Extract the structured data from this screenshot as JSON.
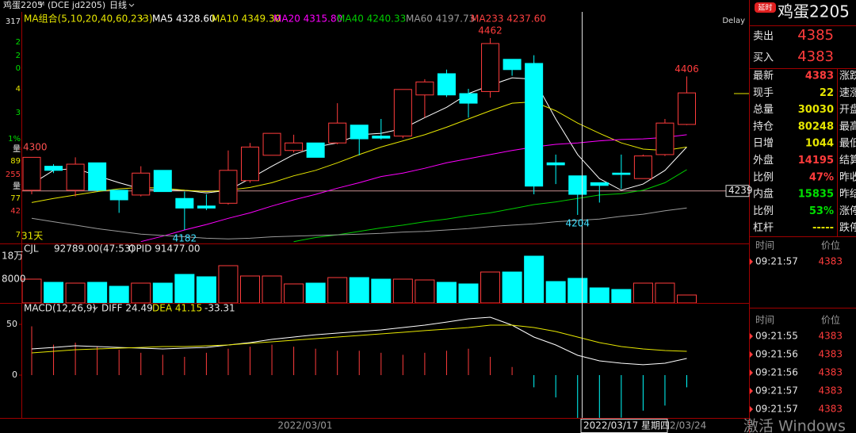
{
  "header": {
    "name": "鸡蛋2205",
    "superscript": "M",
    "code": "(DCE jd2205)",
    "period": "日线",
    "delay": "Delay"
  },
  "left_strip": [
    {
      "text": "317",
      "color": "#e6e6e6"
    },
    {
      "text": "2",
      "color": "#00e000"
    },
    {
      "text": "2",
      "color": "#00e000"
    },
    {
      "text": "0",
      "color": "#00e000"
    },
    {
      "text": "4",
      "color": "#e6e600"
    },
    {
      "text": "3",
      "color": "#00e000"
    },
    {
      "text": "1%",
      "color": "#00e000"
    },
    {
      "text": "量",
      "color": "#e6e6e6"
    },
    {
      "text": "89",
      "color": "#e6e600"
    },
    {
      "text": "255",
      "color": "#ff3c3c"
    },
    {
      "text": "量",
      "color": "#e6e6e6"
    },
    {
      "text": "77",
      "color": "#e6e600"
    },
    {
      "text": "42",
      "color": "#ff3c3c"
    },
    {
      "text": "7",
      "color": "#e6e600"
    }
  ],
  "ma_legend": {
    "title": "MA组合(5,10,20,40,60,233)",
    "items": [
      {
        "label": "MA5 4328.60",
        "color": "#ffffff",
        "values": [
          4249,
          4269,
          4272,
          4261,
          4251,
          4242,
          4240,
          4240,
          4236,
          4240,
          4257,
          4275,
          4292,
          4303,
          4309,
          4321,
          4323,
          4330,
          4346,
          4361,
          4381,
          4393,
          4404,
          4402,
          4344,
          4292,
          4257,
          4240,
          4249,
          4269,
          4303
        ]
      },
      {
        "label": "MA10 4349.30",
        "color": "#e6e600",
        "values": [
          4222,
          4228,
          4233,
          4238,
          4242,
          4244,
          4243,
          4240,
          4238,
          4240,
          4244,
          4251,
          4261,
          4269,
          4280,
          4292,
          4303,
          4312,
          4321,
          4332,
          4344,
          4356,
          4367,
          4369,
          4356,
          4338,
          4323,
          4309,
          4300,
          4298,
          4303
        ]
      },
      {
        "label": "MA20 4315.80",
        "color": "#ff00ff",
        "values": [
          null,
          null,
          null,
          null,
          null,
          4165,
          4173,
          4182,
          4190,
          4199,
          4207,
          4217,
          4226,
          4234,
          4243,
          4251,
          4260,
          4265,
          4272,
          4280,
          4286,
          4292,
          4298,
          4303,
          4307,
          4309,
          4312,
          4314,
          4315,
          4317,
          4321
        ]
      },
      {
        "label": "MA40 4240.33",
        "color": "#00cc00",
        "values": [
          null,
          null,
          null,
          null,
          null,
          null,
          null,
          null,
          null,
          null,
          null,
          null,
          4165,
          4171,
          4175,
          4180,
          4185,
          4189,
          4194,
          4198,
          4203,
          4207,
          4213,
          4219,
          4223,
          4228,
          4233,
          4235,
          4240,
          4251,
          4270
        ]
      },
      {
        "label": "MA60 4197.73",
        "color": "#9a9a9a",
        "values": [
          4199,
          4194,
          4189,
          4184,
          4180,
          4176,
          4174,
          4172,
          4170,
          4169,
          4170,
          4172,
          4173,
          4174,
          4175,
          4176,
          4177,
          4179,
          4180,
          4182,
          4184,
          4187,
          4189,
          4191,
          4194,
          4196,
          4198,
          4202,
          4205,
          4210,
          4214
        ]
      },
      {
        "label": "MA233 4237.60",
        "color": "#ff4040",
        "values": []
      }
    ]
  },
  "kline": {
    "candles": [
      {
        "o": 4240,
        "h": 4288,
        "l": 4234,
        "c": 4288
      },
      {
        "o": 4275,
        "h": 4278,
        "l": 4265,
        "c": 4269
      },
      {
        "o": 4240,
        "h": 4288,
        "l": 4231,
        "c": 4278
      },
      {
        "o": 4280,
        "h": 4280,
        "l": 4238,
        "c": 4240
      },
      {
        "o": 4240,
        "h": 4240,
        "l": 4207,
        "c": 4226
      },
      {
        "o": 4233,
        "h": 4275,
        "l": 4231,
        "c": 4265
      },
      {
        "o": 4269,
        "h": 4269,
        "l": 4238,
        "c": 4238
      },
      {
        "o": 4228,
        "h": 4238,
        "l": 4182,
        "c": 4214
      },
      {
        "o": 4217,
        "h": 4234,
        "l": 4211,
        "c": 4214
      },
      {
        "o": 4221,
        "h": 4298,
        "l": 4219,
        "c": 4269
      },
      {
        "o": 4254,
        "h": 4309,
        "l": 4251,
        "c": 4303
      },
      {
        "o": 4291,
        "h": 4323,
        "l": 4291,
        "c": 4323
      },
      {
        "o": 4298,
        "h": 4321,
        "l": 4295,
        "c": 4309
      },
      {
        "o": 4309,
        "h": 4309,
        "l": 4288,
        "c": 4288
      },
      {
        "o": 4309,
        "h": 4367,
        "l": 4307,
        "c": 4338
      },
      {
        "o": 4335,
        "h": 4335,
        "l": 4291,
        "c": 4315
      },
      {
        "o": 4319,
        "h": 4344,
        "l": 4314,
        "c": 4316
      },
      {
        "o": 4319,
        "h": 4387,
        "l": 4316,
        "c": 4387
      },
      {
        "o": 4379,
        "h": 4402,
        "l": 4346,
        "c": 4398
      },
      {
        "o": 4410,
        "h": 4416,
        "l": 4376,
        "c": 4379
      },
      {
        "o": 4381,
        "h": 4388,
        "l": 4346,
        "c": 4367
      },
      {
        "o": 4384,
        "h": 4462,
        "l": 4375,
        "c": 4454
      },
      {
        "o": 4431,
        "h": 4431,
        "l": 4407,
        "c": 4416
      },
      {
        "o": 4425,
        "h": 4437,
        "l": 4234,
        "c": 4246
      },
      {
        "o": 4280,
        "h": 4292,
        "l": 4249,
        "c": 4277
      },
      {
        "o": 4261,
        "h": 4261,
        "l": 4204,
        "c": 4234
      },
      {
        "o": 4251,
        "h": 4251,
        "l": 4222,
        "c": 4247
      },
      {
        "o": 4265,
        "h": 4292,
        "l": 4242,
        "c": 4263
      },
      {
        "o": 4257,
        "h": 4292,
        "l": 4257,
        "c": 4290
      },
      {
        "o": 4292,
        "h": 4344,
        "l": 4290,
        "c": 4338
      },
      {
        "o": 4336,
        "h": 4406,
        "l": 4335,
        "c": 4382
      }
    ],
    "up_color": "#ff3c3c",
    "down_color": "#00ffff",
    "yticks": [
      4300
    ],
    "annotations": [
      4462,
      4182,
      4406,
      4204
    ],
    "marker": 4239,
    "days_label": "31天"
  },
  "volume": {
    "title": "CJL",
    "vol_text": "92789.00(47:53)",
    "opi_text": "OPID 91477.00",
    "axis_labels": [
      "18万",
      "8000"
    ],
    "values": [
      91500,
      79300,
      76250,
      79300,
      64050,
      76250,
      76250,
      109800,
      100650,
      143350,
      103700,
      103700,
      73200,
      76250,
      97600,
      97600,
      91500,
      91500,
      88450,
      79300,
      73200,
      118950,
      118950,
      179950,
      82350,
      94550,
      57950,
      51850,
      76250,
      76250,
      30500
    ]
  },
  "macd": {
    "title": "MACD(12,26,9)",
    "diff_text": "DIFF 24.49",
    "dea_text": "DEA 41.15",
    "hist_text": "-33.31",
    "yticks": [
      50,
      0
    ],
    "diff_color": "#ffffff",
    "dea_color": "#e6e600",
    "diff": [
      25.8,
      27.3,
      28.9,
      28.1,
      27.3,
      26.6,
      25.8,
      26.6,
      27.3,
      29.7,
      32.0,
      35.2,
      37.5,
      39.8,
      41.4,
      43.0,
      44.5,
      46.9,
      49.2,
      52.3,
      55.5,
      57.0,
      49.2,
      37.5,
      29.7,
      19.5,
      14.1,
      11.7,
      10.2,
      11.7,
      16.4
    ],
    "dea": [
      21.9,
      23.4,
      25.0,
      25.8,
      26.6,
      27.3,
      28.1,
      28.1,
      28.9,
      29.7,
      31.3,
      32.8,
      34.4,
      35.9,
      37.5,
      39.1,
      40.6,
      42.2,
      43.8,
      45.3,
      46.9,
      49.2,
      49.2,
      46.9,
      43.0,
      37.5,
      32.0,
      28.1,
      25.8,
      24.2,
      23.4
    ],
    "hist": [
      48,
      30,
      32,
      28,
      25,
      22,
      20,
      18,
      22,
      26,
      28,
      30,
      28,
      26,
      24,
      24,
      22,
      20,
      22,
      24,
      26,
      18,
      8,
      -12,
      -22,
      -55,
      -55,
      -42,
      -35,
      -30,
      -12
    ]
  },
  "dates": [
    "2022/03/01",
    "2022/03/17 星期四",
    "2/03/24"
  ],
  "quote": {
    "badge": "延时",
    "title": "鸡蛋2205",
    "sell_label": "卖出",
    "sell": "4385",
    "buy_label": "买入",
    "buy": "4383",
    "rows": [
      {
        "label": "最新",
        "value": "4383",
        "color": "#ff3c3c",
        "side": "涨跌"
      },
      {
        "label": "现手",
        "value": "22",
        "color": "#e6e600",
        "side": "速涨"
      },
      {
        "label": "总量",
        "value": "30030",
        "color": "#e6e600",
        "side": "开盘"
      },
      {
        "label": "持仓",
        "value": "80248",
        "color": "#e6e600",
        "side": "最高"
      },
      {
        "label": "日增",
        "value": "1044",
        "color": "#e6e600",
        "side": "最低"
      },
      {
        "label": "外盘",
        "value": "14195",
        "color": "#ff3c3c",
        "side": "结算"
      },
      {
        "label": "比例",
        "value": "47%",
        "color": "#ff3c3c",
        "side": "昨收"
      },
      {
        "label": "内盘",
        "value": "15835",
        "color": "#00e000",
        "side": "昨结"
      },
      {
        "label": "比例",
        "value": "53%",
        "color": "#00e000",
        "side": "涨停"
      },
      {
        "label": "杠杆",
        "value": "-----",
        "color": "#e6e600",
        "side": "跌停"
      }
    ],
    "ticks1": {
      "headers": [
        "时间",
        "价位"
      ],
      "rows": [
        [
          "09:21:57",
          "4383"
        ]
      ]
    },
    "ticks2": {
      "headers": [
        "时间",
        "价位"
      ],
      "rows": [
        [
          "09:21:55",
          "4383"
        ],
        [
          "09:21:56",
          "4383"
        ],
        [
          "09:21:56",
          "4383"
        ],
        [
          "09:21:57",
          "4383"
        ],
        [
          "09:21:57",
          "4383"
        ]
      ]
    }
  },
  "watermark": "激活 Windows"
}
